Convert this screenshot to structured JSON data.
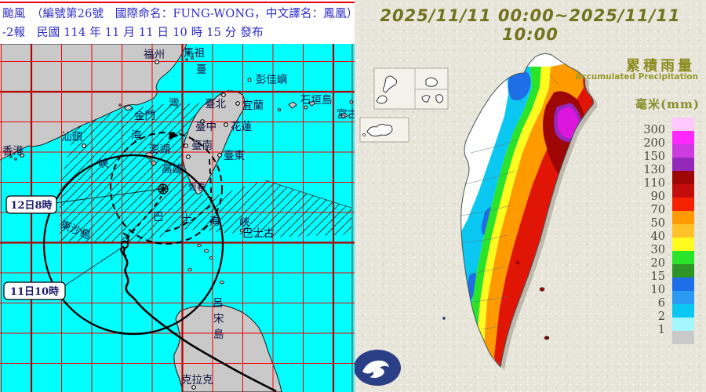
{
  "left": {
    "header": {
      "line1": "颱風　（編號第26號　國際命名：FUNG-WONG，中文譯名：鳳凰）",
      "line2": "-2報　民國 114 年 11 月 11 日 10 時 15 分 發布"
    },
    "callouts": [
      {
        "text": "12日8時"
      },
      {
        "text": "11日10時"
      }
    ],
    "labels": [
      {
        "text": "福州"
      },
      {
        "text": "馬祖"
      },
      {
        "text": "彭佳嶼"
      },
      {
        "text": "臺北"
      },
      {
        "text": "宜蘭"
      },
      {
        "text": "石垣島"
      },
      {
        "text": "宮古"
      },
      {
        "text": "花蓮"
      },
      {
        "text": "臺中"
      },
      {
        "text": "臺南"
      },
      {
        "text": "臺東"
      },
      {
        "text": "高雄"
      },
      {
        "text": "金門"
      },
      {
        "text": "汕頭"
      },
      {
        "text": "香港"
      },
      {
        "text": "澎湖"
      },
      {
        "text": "恆春"
      },
      {
        "text": "東沙島"
      },
      {
        "text": "臺"
      },
      {
        "text": "灣"
      },
      {
        "text": "海"
      },
      {
        "text": "峽"
      },
      {
        "text": "巴"
      },
      {
        "text": "士"
      },
      {
        "text": "海"
      },
      {
        "text": "峽"
      },
      {
        "text": "巴士古"
      },
      {
        "text": "呂"
      },
      {
        "text": "宋"
      },
      {
        "text": "島"
      },
      {
        "text": "克拉克"
      }
    ]
  },
  "right": {
    "title": "2025/11/11 00:00~2025/11/11 10:00",
    "legend": {
      "title_zh": "累積雨量",
      "title_en": "Accumulated Precipitation",
      "unit": "毫米(mm)",
      "values": [
        300,
        200,
        150,
        130,
        110,
        90,
        70,
        50,
        40,
        30,
        20,
        15,
        10,
        6,
        2,
        1
      ],
      "colors": [
        "#ffc8ff",
        "#ff28ff",
        "#cc3ce1",
        "#9428b9",
        "#9e0505",
        "#c30c0c",
        "#f52202",
        "#ff9a00",
        "#ffc228",
        "#fffb1e",
        "#2ae42a",
        "#2e9428",
        "#1e6ee8",
        "#2a9af2",
        "#0ac8f2",
        "#a5f7ff",
        "#c9c9c9"
      ]
    }
  }
}
